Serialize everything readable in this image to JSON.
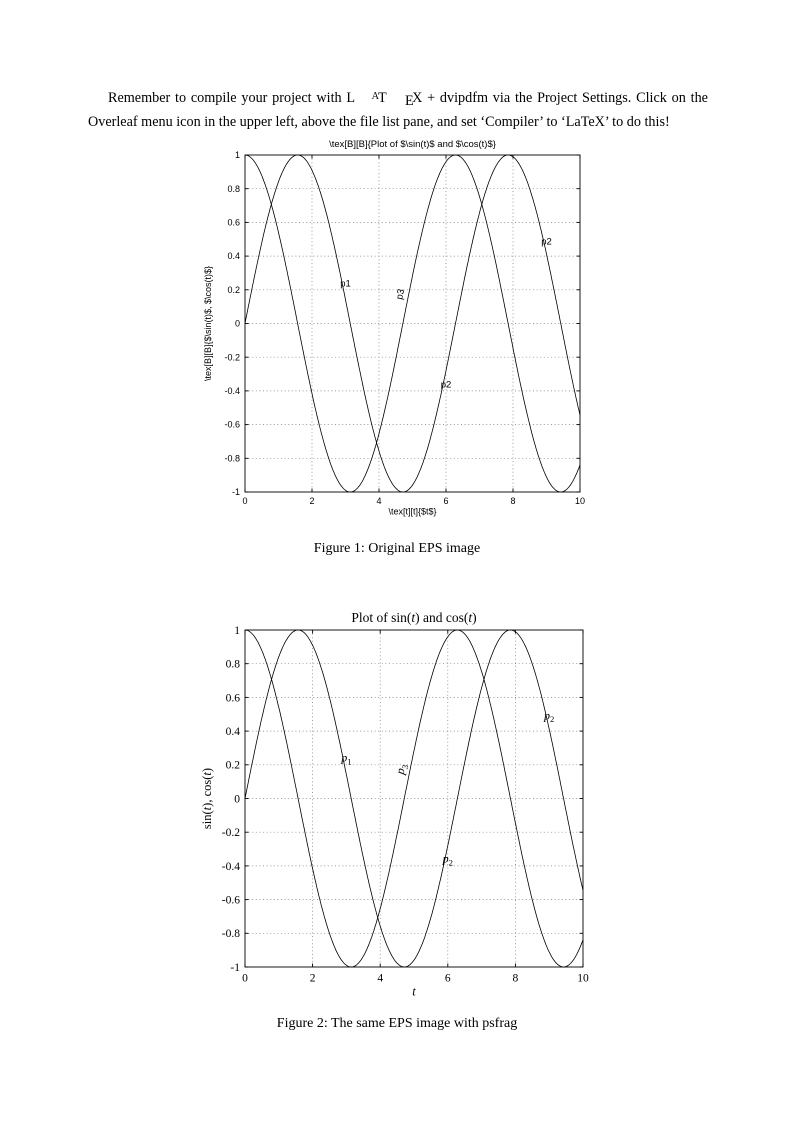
{
  "intro": {
    "before_logo": "Remember to compile your project with ",
    "logo": [
      "L",
      "A",
      "T",
      "E",
      "X"
    ],
    "after_logo": " + dvipdfm via the Project Settings. Click on the Overleaf menu icon in the upper left, above the file list pane, and set ‘Compiler’ to ‘LaTeX’ to do this!"
  },
  "figures": [
    {
      "caption": "Figure 1: Original EPS image"
    },
    {
      "caption": "Figure 2: The same EPS image with psfrag"
    }
  ],
  "colors": {
    "curve": "#000000",
    "grid": "#777777",
    "axis": "#000000"
  },
  "chart_data": [
    {
      "id": "figure1",
      "type": "line",
      "title": "\\tex[B][B]{Plot of $\\sin(t)$ and $\\cos(t)$}",
      "xlabel": "\\tex[t][t]{$t$}",
      "ylabel": "\\tex[B][B]{$\\sin(t)$, $\\cos(t)$}",
      "x_range": [
        0,
        10
      ],
      "y_range": [
        -1,
        1
      ],
      "x_ticks": [
        0,
        2,
        4,
        6,
        8,
        10
      ],
      "y_ticks": [
        -1,
        -0.8,
        -0.6,
        -0.4,
        -0.2,
        0,
        0.2,
        0.4,
        0.6,
        0.8,
        1
      ],
      "grid": true,
      "legend": "none",
      "series": [
        {
          "name": "sin(t)",
          "fn": "sin",
          "color": "#000000"
        },
        {
          "name": "cos(t)",
          "fn": "cos",
          "color": "#000000"
        }
      ],
      "annotations": [
        {
          "text": "p1",
          "x": 3.0,
          "y": 0.22,
          "rotate": 0
        },
        {
          "text": "p3",
          "x": 4.72,
          "y": 0.17,
          "rotate": -78
        },
        {
          "text": "p2",
          "x": 6.0,
          "y": -0.38,
          "rotate": 0
        },
        {
          "text": "p2",
          "x": 9.0,
          "y": 0.47,
          "rotate": 0
        }
      ]
    },
    {
      "id": "figure2",
      "type": "line",
      "title": [
        {
          "t": "Plot of sin("
        },
        {
          "t": "t",
          "i": true
        },
        {
          "t": ") and cos("
        },
        {
          "t": "t",
          "i": true
        },
        {
          "t": ")"
        }
      ],
      "xlabel": [
        {
          "t": "t",
          "i": true
        }
      ],
      "ylabel": [
        {
          "t": "sin("
        },
        {
          "t": "t",
          "i": true
        },
        {
          "t": "), cos("
        },
        {
          "t": "t",
          "i": true
        },
        {
          "t": ")"
        }
      ],
      "x_range": [
        0,
        10
      ],
      "y_range": [
        -1,
        1
      ],
      "x_ticks": [
        0,
        2,
        4,
        6,
        8,
        10
      ],
      "y_ticks": [
        -1,
        -0.8,
        -0.6,
        -0.4,
        -0.2,
        0,
        0.2,
        0.4,
        0.6,
        0.8,
        1
      ],
      "grid": true,
      "legend": "none",
      "series": [
        {
          "name": "sin(t)",
          "fn": "sin",
          "color": "#000000"
        },
        {
          "name": "cos(t)",
          "fn": "cos",
          "color": "#000000"
        }
      ],
      "annotations": [
        {
          "text": [
            {
              "t": "p",
              "i": true
            },
            {
              "t": "1",
              "sub": true
            }
          ],
          "x": 3.0,
          "y": 0.22,
          "rotate": 0
        },
        {
          "text": [
            {
              "t": "p",
              "i": true
            },
            {
              "t": "3",
              "sub": true
            }
          ],
          "x": 4.72,
          "y": 0.17,
          "rotate": -78
        },
        {
          "text": [
            {
              "t": "p",
              "i": true
            },
            {
              "t": "2",
              "sub": true
            }
          ],
          "x": 6.0,
          "y": -0.38,
          "rotate": 0
        },
        {
          "text": [
            {
              "t": "p",
              "i": true
            },
            {
              "t": "2",
              "sub": true
            }
          ],
          "x": 9.0,
          "y": 0.47,
          "rotate": 0
        }
      ]
    }
  ]
}
